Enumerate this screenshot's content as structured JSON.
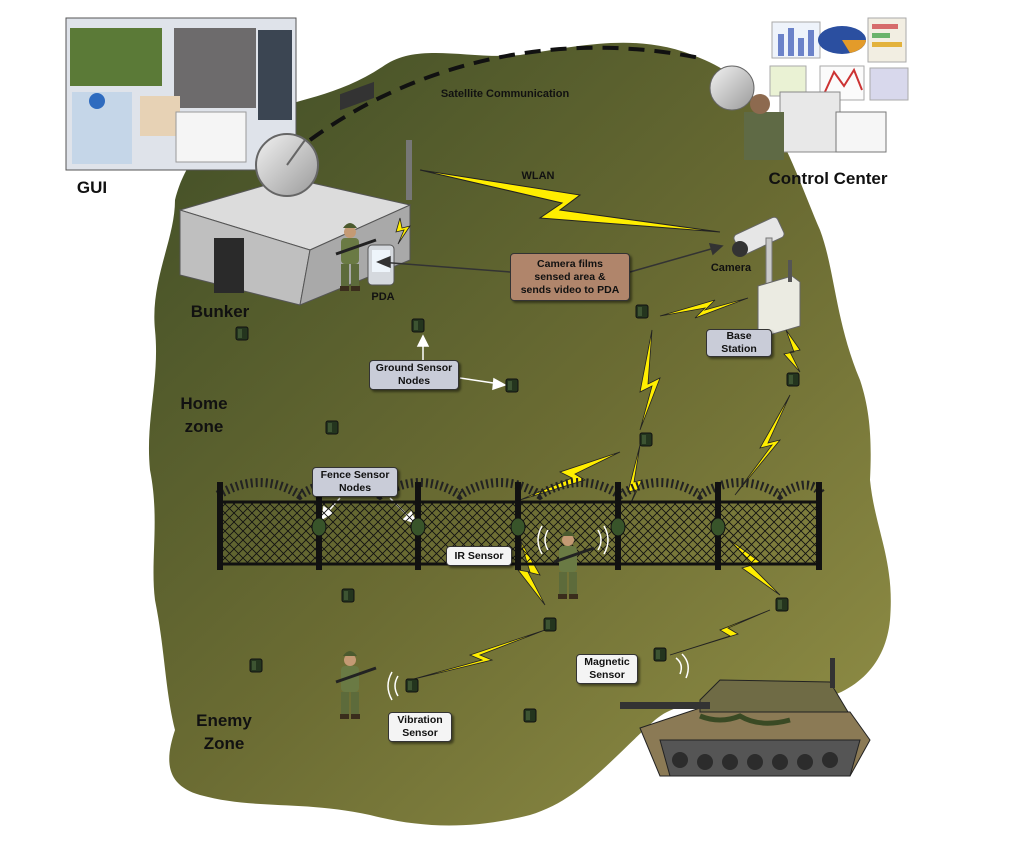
{
  "labels": {
    "gui": "GUI",
    "control_center": "Control Center",
    "satellite_communication": "Satellite Communication",
    "wlan": "WLAN",
    "bunker": "Bunker",
    "pda": "PDA",
    "camera": "Camera",
    "camera_box_line1": "Camera films",
    "camera_box_line2": "sensed area &",
    "camera_box_line3": "sends video to PDA",
    "base_station_line1": "Base",
    "base_station_line2": "Station",
    "ground_sensor_line1": "Ground Sensor",
    "ground_sensor_line2": "Nodes",
    "home_zone_line1": "Home",
    "home_zone_line2": "zone",
    "fence_sensor_line1": "Fence Sensor",
    "fence_sensor_line2": "Nodes",
    "ir_sensor": "IR Sensor",
    "magnetic_sensor_line1": "Magnetic",
    "magnetic_sensor_line2": "Sensor",
    "vibration_sensor_line1": "Vibration",
    "vibration_sensor_line2": "Sensor",
    "enemy_zone_line1": "Enemy",
    "enemy_zone_line2": "Zone"
  },
  "colors": {
    "terrain_dark": "#3f4d26",
    "terrain_light": "#8f8d45",
    "lightning": "#ffee00",
    "label_box_grey": "#c9ccd8",
    "label_box_brown": "#b0856b"
  }
}
